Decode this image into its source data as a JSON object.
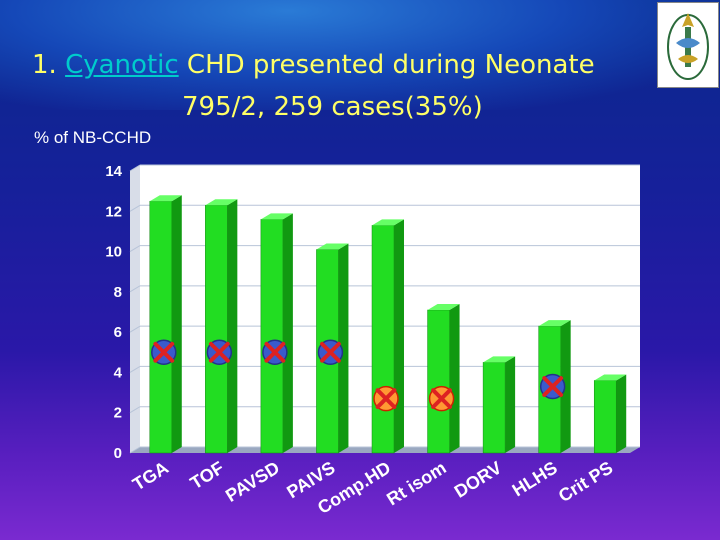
{
  "slide": {
    "title_number": "1.",
    "title_cyanotic": "Cyanotic",
    "title_rest": "CHD presented during Neonate",
    "subtitle": "795/2, 259 cases(35%)"
  },
  "colors": {
    "bar_front": "#22dd22",
    "bar_side": "#119911",
    "bar_top": "#66ff66",
    "plot_bg": "#ffffff",
    "grid": "#b8c4d8",
    "marker_blue": "#3a5acc",
    "marker_orange": "#ff9933",
    "marker_x": "#dd2222"
  },
  "chart_data": {
    "type": "bar",
    "title": "",
    "ylabel": "% of NB-CCHD",
    "xlabel": "",
    "ylim": [
      0,
      14
    ],
    "yticks": [
      0,
      2,
      4,
      6,
      8,
      10,
      12,
      14
    ],
    "categories": [
      "TGA",
      "TOF",
      "PAVSD",
      "PAIVS",
      "Comp.HD",
      "Rt isom",
      "DORV",
      "HLHS",
      "Crit PS"
    ],
    "values": [
      12.5,
      12.3,
      11.6,
      10.1,
      11.3,
      7.1,
      4.5,
      6.3,
      3.6
    ],
    "markers": [
      {
        "category": "TGA",
        "y": 5,
        "style": "blue-circle-x"
      },
      {
        "category": "TOF",
        "y": 5,
        "style": "blue-circle-x"
      },
      {
        "category": "PAVSD",
        "y": 5,
        "style": "blue-circle-x"
      },
      {
        "category": "PAIVS",
        "y": 5,
        "style": "blue-circle-x"
      },
      {
        "category": "Comp.HD",
        "y": 2.7,
        "style": "orange-circle-x"
      },
      {
        "category": "Rt isom",
        "y": 2.7,
        "style": "orange-circle-x"
      },
      {
        "category": "HLHS",
        "y": 3.3,
        "style": "blue-circle-x"
      }
    ]
  }
}
